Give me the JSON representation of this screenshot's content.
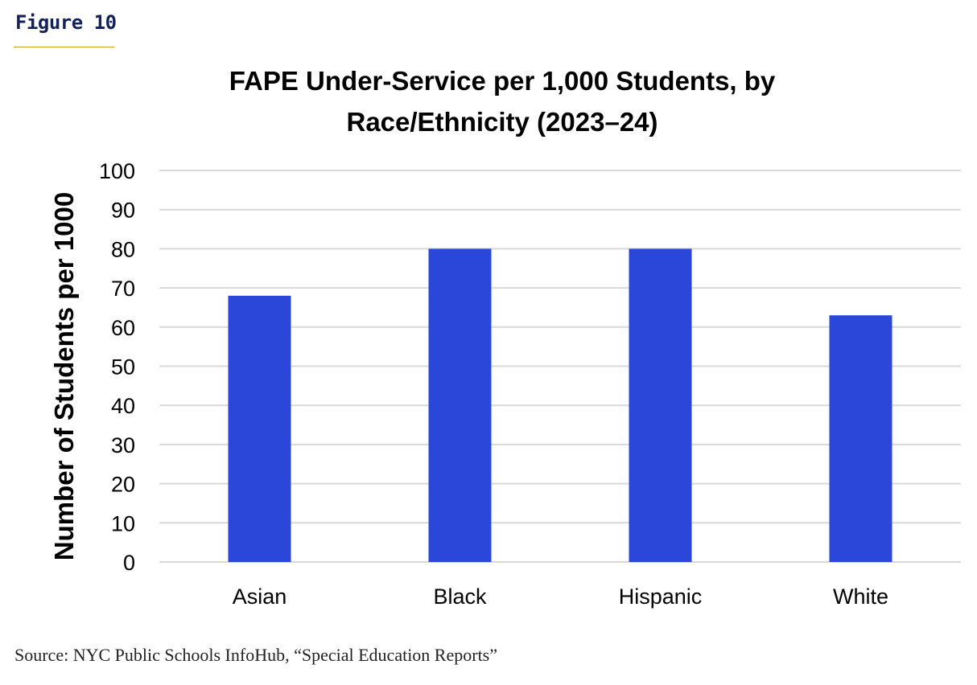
{
  "figure_label": "Figure 10",
  "source": "Source: NYC Public Schools InfoHub, “Special Education Reports”",
  "colors": {
    "bar": "#2b47da",
    "grid": "#d9d9d9",
    "text": "#000000",
    "figure_label": "#14215a",
    "rule": "#c9a227"
  },
  "chart_data": {
    "type": "bar",
    "title_lines": [
      "FAPE Under-Service per 1,000 Students, by",
      "Race/Ethnicity (2023–24)"
    ],
    "categories": [
      "Asian",
      "Black",
      "Hispanic",
      "White"
    ],
    "values": [
      68,
      80,
      80,
      63
    ],
    "xlabel": "",
    "ylabel": "Number of Students per 1000",
    "ylim": [
      0,
      100
    ],
    "yticks": [
      0,
      10,
      20,
      30,
      40,
      50,
      60,
      70,
      80,
      90,
      100
    ],
    "grid": true,
    "legend": "none"
  }
}
